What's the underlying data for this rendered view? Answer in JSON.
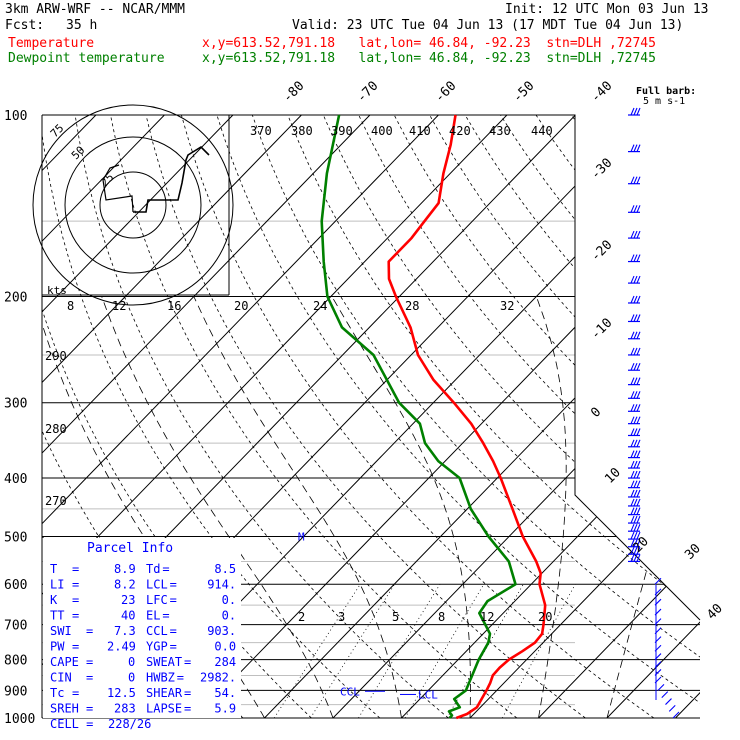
{
  "header": {
    "model": "3km ARW-WRF -- NCAR/MMM",
    "init": "Init: 12 UTC Mon 03 Jun 13",
    "fcst_label": "Fcst:",
    "fcst_value": "35 h",
    "valid": "Valid: 23 UTC Tue 04 Jun 13 (17 MDT Tue 04 Jun 13)",
    "temp_label": "Temperature",
    "temp_info": "x,y=613.52,791.18   lat,lon= 46.84, -92.23  stn=DLH ,72745",
    "dew_label": "Dewpoint temperature",
    "dew_info": "x,y=613.52,791.18   lat,lon= 46.84, -92.23  stn=DLH ,72745"
  },
  "colors": {
    "temperature": "#ff0000",
    "dewpoint": "#008000",
    "wind": "#0000ff",
    "grid": "#000000",
    "theta_label": "#000000"
  },
  "chart_data": {
    "type": "line",
    "pressure_levels": [
      100,
      200,
      300,
      400,
      500,
      600,
      700,
      800,
      900,
      1000
    ],
    "isotherm_labels": [
      "-80",
      "-70",
      "-60",
      "-50",
      "-40",
      "-30",
      "-20",
      "-10",
      "0",
      "10",
      "20",
      "30",
      "40"
    ],
    "theta_labels": [
      "370",
      "380",
      "390",
      "400",
      "410",
      "420",
      "430",
      "440",
      "290",
      "280",
      "270"
    ],
    "mixing_ratio_labels": [
      "2",
      "3",
      "5",
      "8",
      "12",
      "20"
    ],
    "hodograph": {
      "speed_rings": [
        "75",
        "50",
        "25"
      ],
      "unit": "kts",
      "ring_axis_labels": [
        "8",
        "12",
        "16",
        "20",
        "24",
        "28",
        "32"
      ]
    },
    "wind_legend": {
      "line1": "Full barb:",
      "line2": "5 m s-1"
    },
    "series": [
      {
        "name": "Temperature",
        "points": [
          [
            1000,
            18.0
          ],
          [
            985,
            19.0
          ],
          [
            960,
            19.5
          ],
          [
            930,
            19.0
          ],
          [
            900,
            18.5
          ],
          [
            875,
            18.0
          ],
          [
            850,
            17.3
          ],
          [
            825,
            17.2
          ],
          [
            800,
            17.4
          ],
          [
            775,
            18.2
          ],
          [
            750,
            18.8
          ],
          [
            725,
            18.6
          ],
          [
            700,
            17.5
          ],
          [
            650,
            15.0
          ],
          [
            600,
            11.2
          ],
          [
            575,
            9.8
          ],
          [
            550,
            7.5
          ],
          [
            500,
            2.0
          ],
          [
            450,
            -3.4
          ],
          [
            400,
            -9.5
          ],
          [
            375,
            -13.0
          ],
          [
            350,
            -17.0
          ],
          [
            325,
            -21.5
          ],
          [
            300,
            -27.0
          ],
          [
            275,
            -33.2
          ],
          [
            250,
            -39.0
          ],
          [
            225,
            -44.0
          ],
          [
            200,
            -50.5
          ],
          [
            187,
            -54.0
          ],
          [
            175,
            -56.5
          ],
          [
            160,
            -56.5
          ],
          [
            150,
            -57.0
          ],
          [
            140,
            -57.5
          ],
          [
            125,
            -61.0
          ],
          [
            112,
            -64.0
          ],
          [
            100,
            -67.5
          ]
        ]
      },
      {
        "name": "Dewpoint temperature",
        "points": [
          [
            1000,
            17.0
          ],
          [
            990,
            17.0
          ],
          [
            975,
            16.0
          ],
          [
            960,
            17.0
          ],
          [
            930,
            15.0
          ],
          [
            900,
            15.5
          ],
          [
            850,
            14.3
          ],
          [
            800,
            13.0
          ],
          [
            750,
            12.0
          ],
          [
            725,
            11.0
          ],
          [
            700,
            9.0
          ],
          [
            670,
            6.5
          ],
          [
            640,
            6.0
          ],
          [
            600,
            7.7
          ],
          [
            550,
            3.5
          ],
          [
            500,
            -3.0
          ],
          [
            450,
            -9.5
          ],
          [
            400,
            -15.5
          ],
          [
            375,
            -21.0
          ],
          [
            350,
            -25.5
          ],
          [
            325,
            -29.0
          ],
          [
            300,
            -35.0
          ],
          [
            275,
            -40.0
          ],
          [
            250,
            -45.5
          ],
          [
            225,
            -54.0
          ],
          [
            200,
            -60.5
          ],
          [
            175,
            -66.0
          ],
          [
            150,
            -72.0
          ],
          [
            125,
            -78.0
          ],
          [
            100,
            -84.5
          ]
        ]
      }
    ],
    "levels_text": {
      "lcl": "LCL",
      "ccl": "CCL",
      "mark_500": "M"
    }
  },
  "parcel_info": {
    "title": "Parcel Info",
    "rows": [
      {
        "k1": "T",
        "v1": "8.9",
        "k2": "Td",
        "v2": "8.5"
      },
      {
        "k1": "LI",
        "v1": "8.2",
        "k2": "LCL",
        "v2": "914."
      },
      {
        "k1": "K",
        "v1": "23",
        "k2": "LFC",
        "v2": "0."
      },
      {
        "k1": "TT",
        "v1": "40",
        "k2": "EL",
        "v2": "0."
      },
      {
        "k1": "SWI",
        "v1": "7.3",
        "k2": "CCL",
        "v2": "903."
      },
      {
        "k1": "PW",
        "v1": "2.49",
        "k2": "YGP",
        "v2": "0.0"
      },
      {
        "k1": "CAPE",
        "v1": "0",
        "k2": "SWEAT",
        "v2": "284"
      },
      {
        "k1": "CIN",
        "v1": "0",
        "k2": "HWBZ",
        "v2": "2982."
      },
      {
        "k1": "Tc",
        "v1": "12.5",
        "k2": "SHEAR",
        "v2": "54."
      },
      {
        "k1": "SREH",
        "v1": "283",
        "k2": "LAPSE",
        "v2": "5.9"
      }
    ],
    "cell_label": "CELL =",
    "cell_value": "228/26"
  }
}
